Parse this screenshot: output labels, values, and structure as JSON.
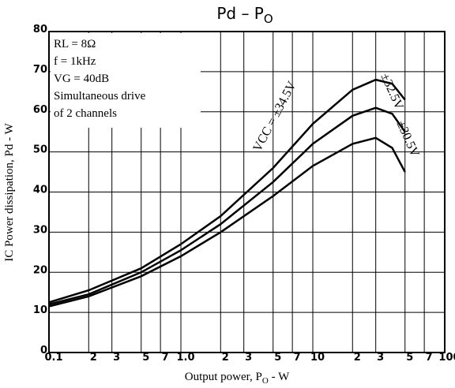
{
  "chart_data": {
    "type": "line",
    "title": [
      "Pd  –  P",
      "O"
    ],
    "xlabel": [
      "Output power, P",
      "O",
      " - W"
    ],
    "ylabel": "IC Power dissipation, Pd - W",
    "annotations": [
      "RL = 8Ω",
      "f = 1kHz",
      "VG = 40dB",
      "Simultaneous drive",
      "of 2 channels"
    ],
    "xscale": "log",
    "xlim": [
      0.1,
      100
    ],
    "ylim": [
      0,
      80
    ],
    "xticks": [
      0.1,
      {
        "value": 0.2,
        "label": "2"
      },
      {
        "value": 0.3,
        "label": "3"
      },
      {
        "value": 0.5,
        "label": "5"
      },
      {
        "value": 0.7,
        "label": "7"
      },
      {
        "value": 1,
        "label": "1.0"
      },
      {
        "value": 2,
        "label": "2"
      },
      {
        "value": 3,
        "label": "3"
      },
      {
        "value": 5,
        "label": "5"
      },
      {
        "value": 7,
        "label": "7"
      },
      10,
      {
        "value": 20,
        "label": "2"
      },
      {
        "value": 30,
        "label": "3"
      },
      {
        "value": 50,
        "label": "5"
      },
      {
        "value": 70,
        "label": "7"
      },
      100
    ],
    "yticks": [
      0,
      10,
      20,
      30,
      40,
      50,
      60,
      70,
      80
    ],
    "grid": true,
    "x": [
      0.1,
      0.2,
      0.5,
      1,
      2,
      5,
      10,
      20,
      30,
      40,
      50
    ],
    "series": [
      {
        "name": "VCC = ±34.5V",
        "color": "#000000",
        "values": [
          12.5,
          15.5,
          21,
          27,
          34,
          46,
          57,
          65.5,
          68,
          67,
          63
        ]
      },
      {
        "name": "±32.5V",
        "color": "#000000",
        "values": [
          12,
          14.5,
          20,
          25.5,
          32,
          42.5,
          52,
          59,
          61,
          59.5,
          55
        ]
      },
      {
        "name": "±30.5V",
        "color": "#000000",
        "values": [
          11.5,
          14,
          19,
          24,
          30,
          39,
          46.5,
          52,
          53.5,
          51,
          45
        ]
      }
    ]
  }
}
